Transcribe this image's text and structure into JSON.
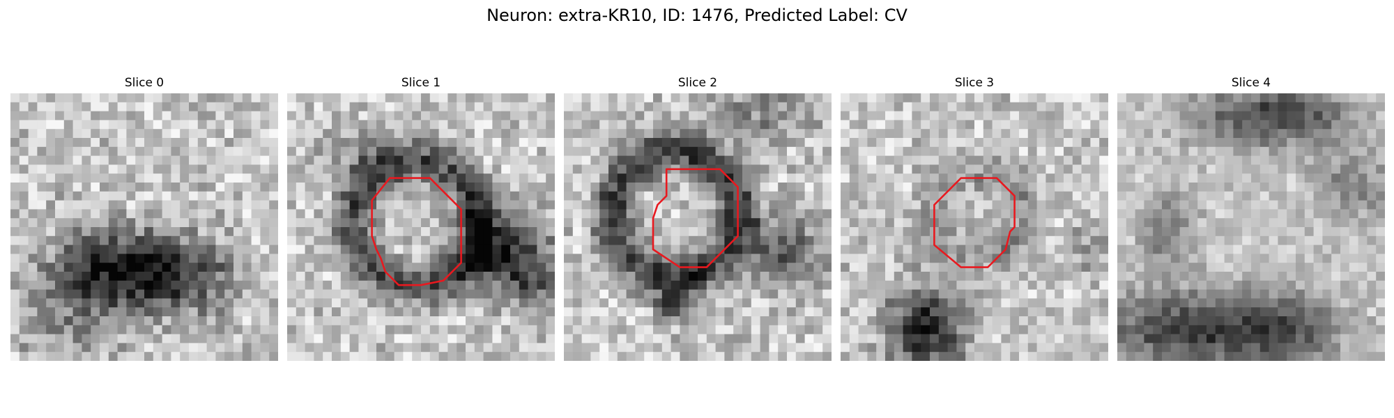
{
  "figure": {
    "title": "Neuron: extra-KR10, ID: 1476, Predicted Label: CV",
    "contour_color": "#e8191f",
    "colormap": "grayscale"
  },
  "panels": [
    {
      "title": "Slice 0",
      "has_contour": false
    },
    {
      "title": "Slice 1",
      "has_contour": true
    },
    {
      "title": "Slice 2",
      "has_contour": true
    },
    {
      "title": "Slice 3",
      "has_contour": true
    },
    {
      "title": "Slice 4",
      "has_contour": false
    }
  ]
}
